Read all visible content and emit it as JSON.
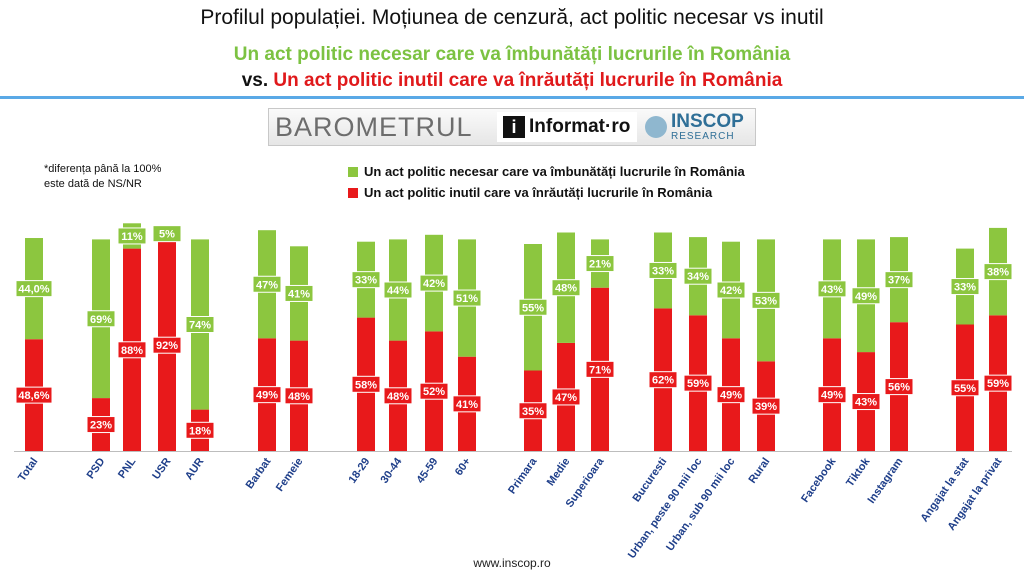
{
  "header": {
    "title": "Profilul populației. Moțiunea de cenzură, act politic necesar vs inutil",
    "subtitle_green": "Un act politic necesar care va îmbunătăți lucrurile în România",
    "subtitle_vs": "vs.",
    "subtitle_red": "Un act politic inutil care va înrăutăți lucrurile în România"
  },
  "logo": {
    "barometrul": "BAROMETRUL",
    "informat_icon": "i",
    "informat": "Informat·ro",
    "inscop": "INSCOP",
    "inscop_sub": "RESEARCH"
  },
  "note": "*diferența până la 100% este dată de NS/NR",
  "source": "www.inscop.ro",
  "colors": {
    "green": "#8cc63f",
    "red": "#e8191b",
    "rule": "#5aa9e6"
  },
  "chart_data": {
    "type": "bar",
    "stacked": true,
    "ylim": [
      0,
      100
    ],
    "categories": [
      "Total",
      "PSD",
      "PNL",
      "USR",
      "AUR",
      "Barbat",
      "Femeie",
      "18-29",
      "30-44",
      "45-59",
      "60+",
      "Primara",
      "Medie",
      "Superioara",
      "Bucuresti",
      "Urban, peste 90 mii loc",
      "Urban, sub 90 mii loc",
      "Rural",
      "Facebook",
      "Tiktok",
      "Instagram",
      "Angajat la stat",
      "Angajat la privat"
    ],
    "series": [
      {
        "name": "Un act politic inutil care va înrăutăți lucrurile în România",
        "color": "#e8191b",
        "values": [
          48.6,
          23,
          88,
          92,
          18,
          49,
          48,
          58,
          48,
          52,
          41,
          35,
          47,
          71,
          62,
          59,
          49,
          39,
          49,
          43,
          56,
          55,
          59
        ],
        "labels": [
          "48,6%",
          "23%",
          "88%",
          "92%",
          "18%",
          "49%",
          "48%",
          "58%",
          "48%",
          "52%",
          "41%",
          "35%",
          "47%",
          "71%",
          "62%",
          "59%",
          "49%",
          "39%",
          "49%",
          "43%",
          "56%",
          "55%",
          "59%"
        ]
      },
      {
        "name": "Un act politic necesar care va îmbunătăți lucrurile în România",
        "color": "#8cc63f",
        "values": [
          44.0,
          69,
          11,
          5,
          74,
          47,
          41,
          33,
          44,
          42,
          51,
          55,
          48,
          21,
          33,
          34,
          42,
          53,
          43,
          49,
          37,
          33,
          38
        ],
        "labels": [
          "44,0%",
          "69%",
          "11%",
          "5%",
          "74%",
          "47%",
          "41%",
          "33%",
          "44%",
          "42%",
          "51%",
          "55%",
          "48%",
          "21%",
          "33%",
          "34%",
          "42%",
          "53%",
          "43%",
          "49%",
          "37%",
          "33%",
          "38%"
        ]
      }
    ]
  }
}
